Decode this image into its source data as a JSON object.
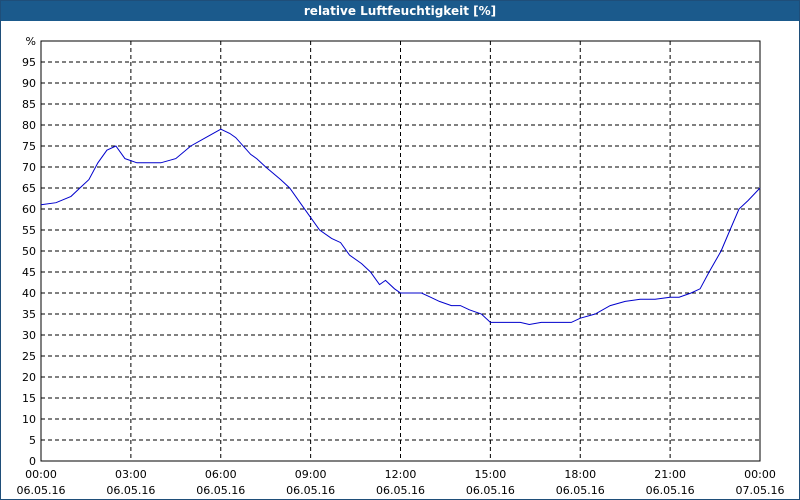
{
  "window": {
    "title": "relative Luftfeuchtigkeit [%]"
  },
  "colors": {
    "title_bg": "#1b5a8c",
    "line": "#0000cc",
    "grid": "#000000"
  },
  "chart_data": {
    "type": "line",
    "title": "relative Luftfeuchtigkeit [%]",
    "ylabel": "%",
    "xlabel": "",
    "ylim": [
      0,
      100
    ],
    "y_ticks": [
      "0",
      "5",
      "10",
      "15",
      "20",
      "25",
      "30",
      "35",
      "40",
      "45",
      "50",
      "55",
      "60",
      "65",
      "70",
      "75",
      "80",
      "85",
      "90",
      "95"
    ],
    "x_ticks": [
      {
        "time": "00:00",
        "date": "06.05.16"
      },
      {
        "time": "03:00",
        "date": "06.05.16"
      },
      {
        "time": "06:00",
        "date": "06.05.16"
      },
      {
        "time": "09:00",
        "date": "06.05.16"
      },
      {
        "time": "12:00",
        "date": "06.05.16"
      },
      {
        "time": "15:00",
        "date": "06.05.16"
      },
      {
        "time": "18:00",
        "date": "06.05.16"
      },
      {
        "time": "21:00",
        "date": "06.05.16"
      },
      {
        "time": "00:00",
        "date": "07.05.16"
      }
    ],
    "xlim_hours": [
      0,
      24
    ],
    "grid": true,
    "series": [
      {
        "x_hours": [
          0,
          0.5,
          1.0,
          1.3,
          1.6,
          1.9,
          2.2,
          2.5,
          2.8,
          3.2,
          3.5,
          4.0,
          4.5,
          5.0,
          5.5,
          6.0,
          6.3,
          6.5,
          7.0,
          7.2,
          7.5,
          8.0,
          8.3,
          8.7,
          9.0,
          9.3,
          9.7,
          10.0,
          10.3,
          10.7,
          11.0,
          11.3,
          11.5,
          11.8,
          12.0,
          12.3,
          12.7,
          13.0,
          13.3,
          13.7,
          14.0,
          14.3,
          14.7,
          15.0,
          15.5,
          16.0,
          16.3,
          16.7,
          17.0,
          17.3,
          17.7,
          18.0,
          18.5,
          19.0,
          19.5,
          20.0,
          20.5,
          21.0,
          21.3,
          21.7,
          22.0,
          22.3,
          22.7,
          23.0,
          23.3,
          23.6,
          24.0
        ],
        "values": [
          61,
          61.5,
          63,
          65,
          67,
          71,
          74,
          75,
          72,
          71,
          71,
          71,
          72,
          75,
          77,
          79,
          78,
          77,
          73,
          72,
          70,
          67,
          65,
          61,
          58,
          55,
          53,
          52,
          49,
          47,
          45,
          42,
          43,
          41,
          40,
          40,
          40,
          39,
          38,
          37,
          37,
          36,
          35,
          33,
          33,
          33,
          32.5,
          33,
          33,
          33,
          33,
          34,
          35,
          37,
          38,
          38.5,
          38.5,
          39,
          39,
          40,
          41,
          45,
          50,
          55,
          60,
          62,
          65
        ]
      }
    ]
  }
}
